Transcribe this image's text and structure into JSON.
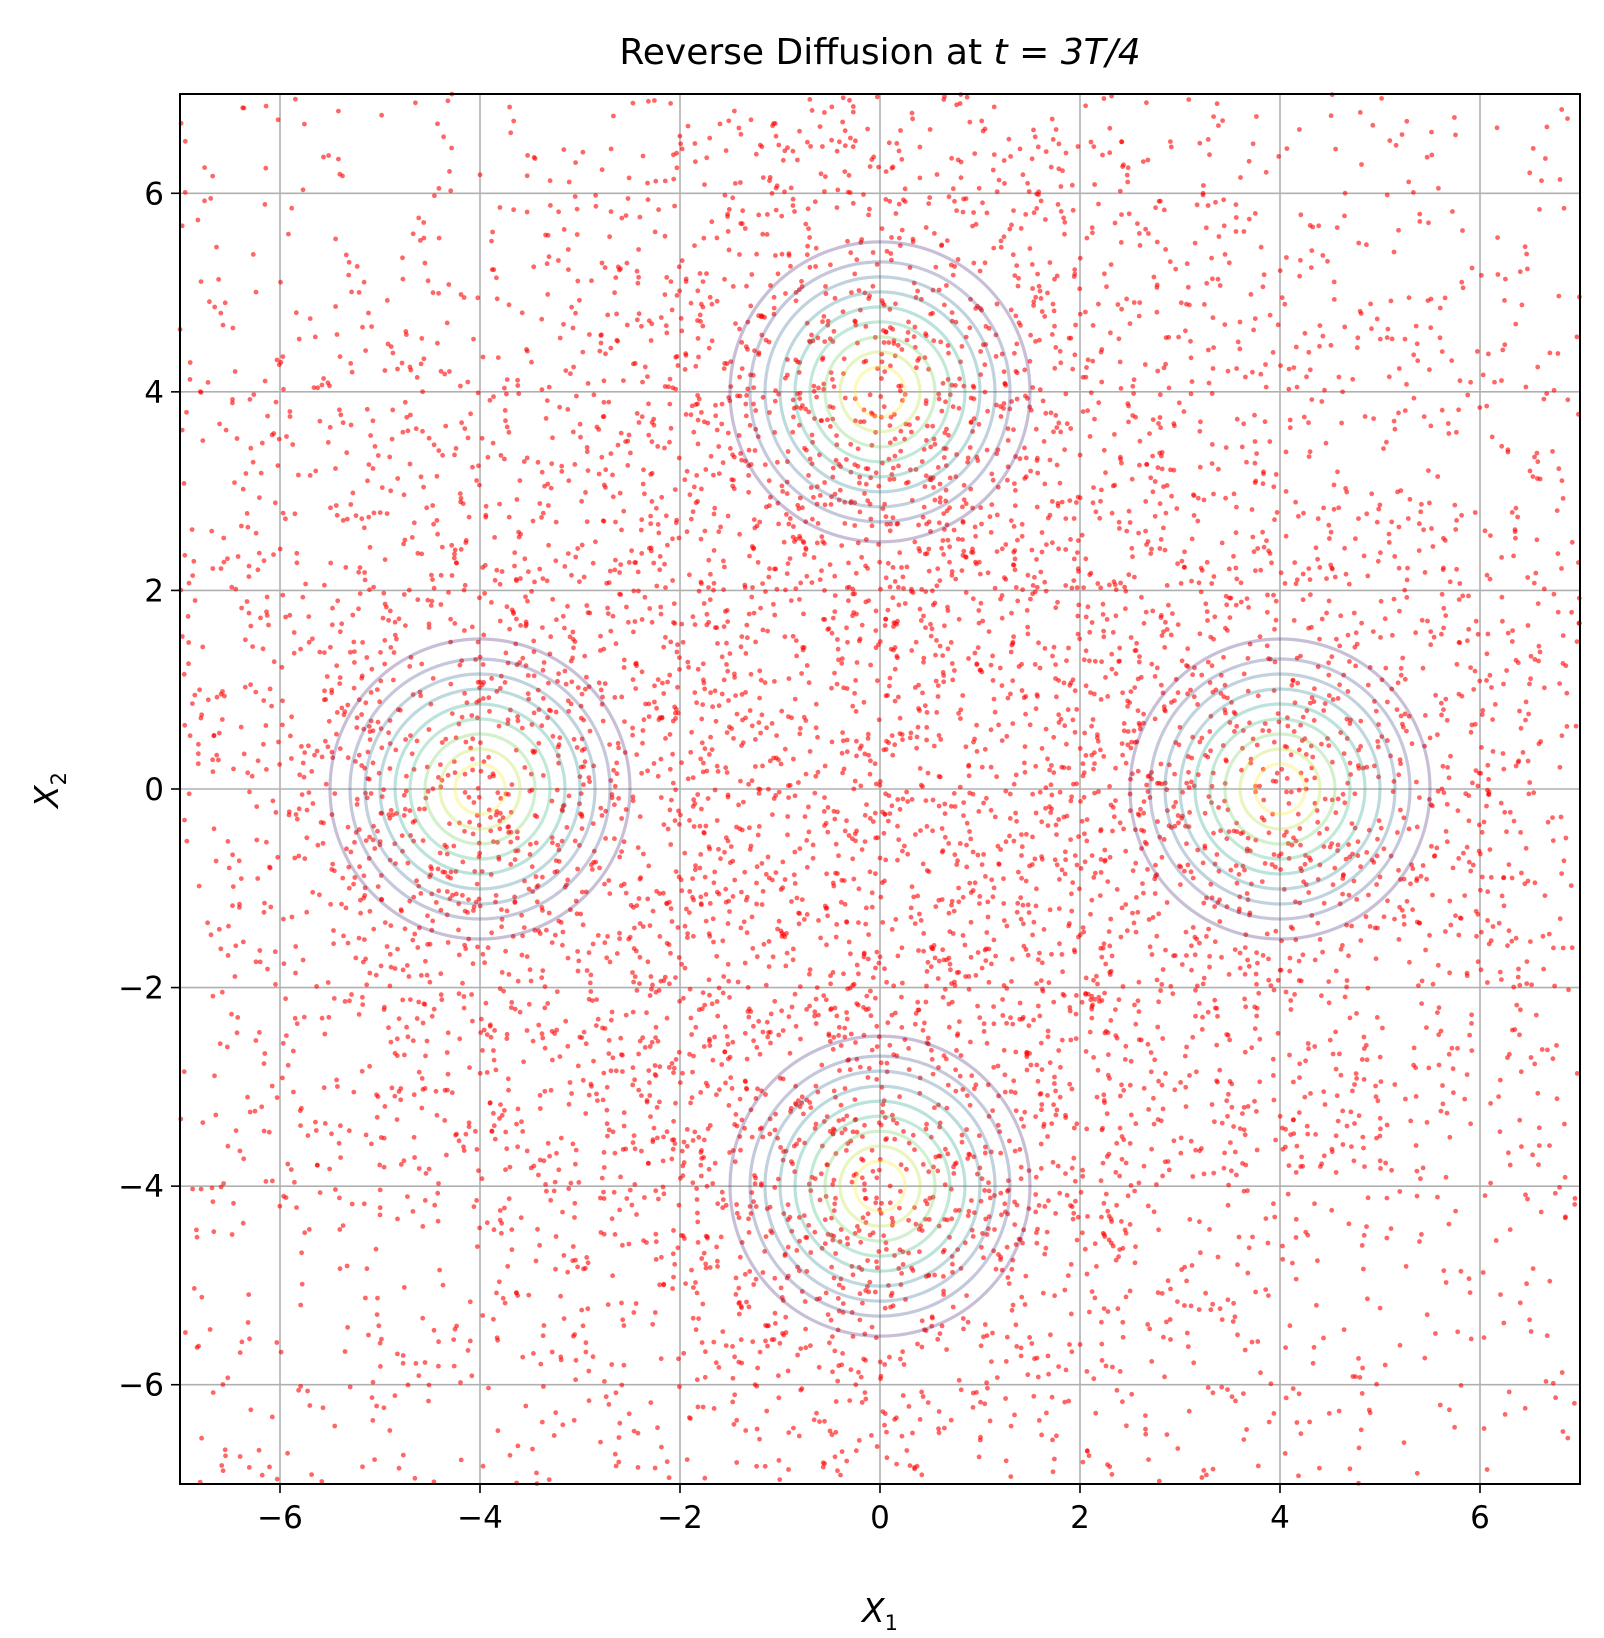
{
  "chart_data": {
    "type": "scatter",
    "title_prefix": "Reverse Diffusion at ",
    "title_math": "t = 3T/4",
    "xlabel_base": "X",
    "xlabel_sub": "1",
    "ylabel_base": "X",
    "ylabel_sub": "2",
    "xlim": [
      -7,
      7
    ],
    "ylim": [
      -7,
      7
    ],
    "grid": true,
    "xticks": [
      -6,
      -4,
      -2,
      0,
      2,
      4,
      6
    ],
    "yticks": [
      -6,
      -4,
      -2,
      0,
      2,
      4,
      6
    ],
    "xtick_labels": [
      "−6",
      "−4",
      "−2",
      "0",
      "2",
      "4",
      "6"
    ],
    "ytick_labels": [
      "−6",
      "−4",
      "−2",
      "0",
      "2",
      "4",
      "6"
    ],
    "scatter": {
      "color": "#ff0000",
      "alpha": 0.6,
      "n_points": 8000,
      "distribution": "mixture of broad gaussians centred on the four modes plus near-uniform background",
      "seed": 7
    },
    "modes": [
      {
        "center": [
          0,
          4
        ]
      },
      {
        "center": [
          -4,
          0
        ]
      },
      {
        "center": [
          4,
          0
        ]
      },
      {
        "center": [
          0,
          -4
        ]
      }
    ],
    "contour_radii": [
      0.25,
      0.4,
      0.55,
      0.7,
      0.85,
      1.0,
      1.15,
      1.3,
      1.5
    ],
    "contour_colors": [
      "#fde725",
      "#b5de2b",
      "#6ece58",
      "#35b779",
      "#1f9e89",
      "#26828e",
      "#31688e",
      "#3e4989",
      "#482878"
    ],
    "contour_alpha": 0.3
  }
}
